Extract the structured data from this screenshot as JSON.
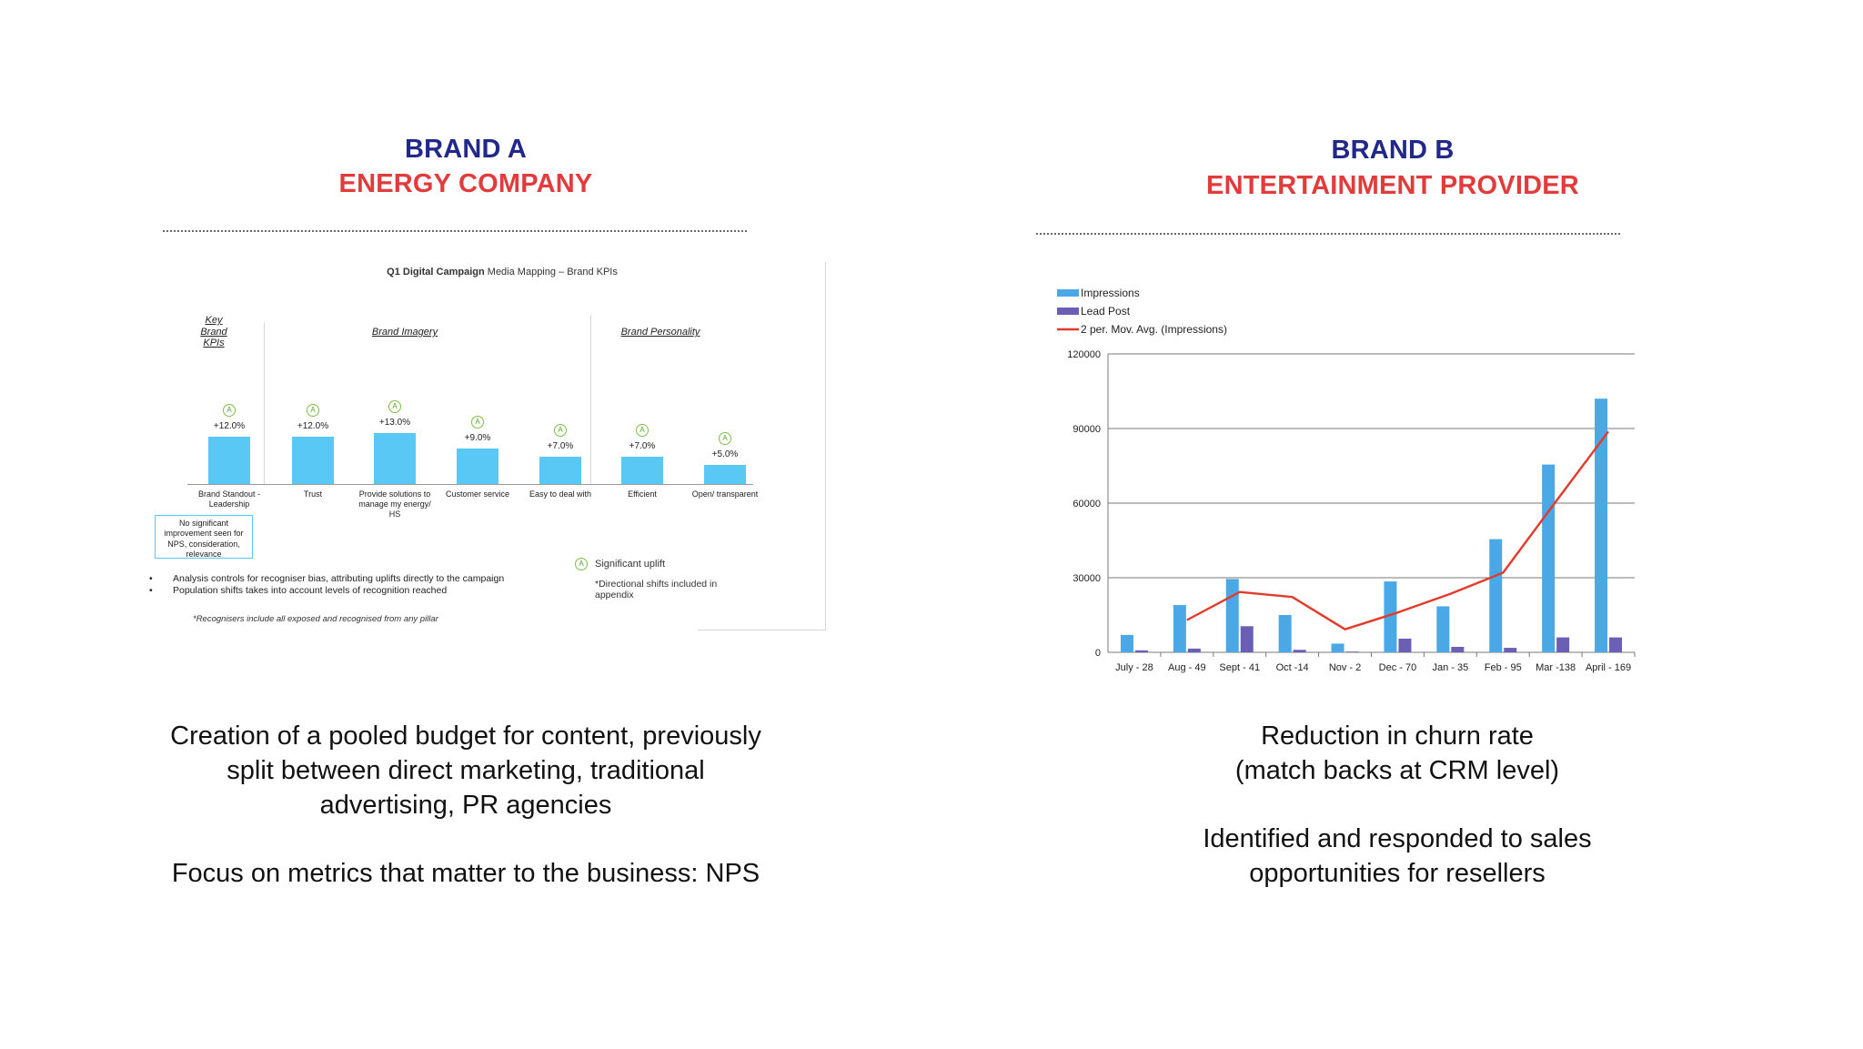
{
  "brand_a": {
    "name": "BRAND A",
    "subtitle": "ENERGY COMPANY",
    "inset": {
      "title_bold": "Q1 Digital Campaign",
      "title_rest": " Media Mapping – Brand KPIs",
      "pillars": {
        "key": "Key Brand KPIs",
        "imagery": "Brand Imagery",
        "personality": "Brand Personality"
      },
      "note_box": "No significant improvement seen for NPS, consideration, relevance",
      "legend_icon": "A",
      "legend_significant": "Significant uplift",
      "legend_directional": "*Directional shifts included in appendix",
      "bullets": [
        "Analysis controls for recogniser bias, attributing uplifts directly to the campaign",
        "Population shifts takes into account levels of recognition reached"
      ],
      "footnote": "*Recognisers include all exposed and recognised from any pillar"
    },
    "body": [
      "Creation of a pooled budget for content, previously",
      "split between direct marketing, traditional",
      "advertising, PR agencies",
      "Focus on metrics that matter to the business: NPS"
    ]
  },
  "brand_b": {
    "name": "BRAND B",
    "subtitle": "ENTERTAINMENT PROVIDER",
    "body": [
      "Reduction in churn rate",
      "(match backs at CRM level)",
      "Identified and responded to sales",
      "opportunities for resellers"
    ]
  },
  "chart_data": [
    {
      "type": "bar",
      "title": "Q1 Digital Campaign Media Mapping – Brand KPIs",
      "categories": [
        "Brand Standout - Leadership",
        "Trust",
        "Provide solutions to manage my energy/ HS",
        "Customer service",
        "Easy to deal with",
        "Efficient",
        "Open/ transparent"
      ],
      "values": [
        12.0,
        12.0,
        13.0,
        9.0,
        7.0,
        7.0,
        5.0
      ],
      "labels": [
        "+12.0%",
        "+12.0%",
        "+13.0%",
        "+9.0%",
        "+7.0%",
        "+7.0%",
        "+5.0%"
      ],
      "significant": [
        true,
        true,
        true,
        true,
        true,
        true,
        true
      ],
      "unit": "%",
      "color": "#59c8f4"
    },
    {
      "type": "bar",
      "categories": [
        "July - 28",
        "Aug - 49",
        "Sept - 41",
        "Oct -14",
        "Nov - 2",
        "Dec - 70",
        "Jan - 35",
        "Feb - 95",
        "Mar -138",
        "April - 169"
      ],
      "series": [
        {
          "name": "Impressions",
          "type": "bar",
          "color": "#4aa8e6",
          "values": [
            7000,
            19000,
            29500,
            15000,
            3500,
            28500,
            18500,
            45500,
            75500,
            102000
          ]
        },
        {
          "name": "Lead Post",
          "type": "bar",
          "color": "#6b5fb5",
          "values": [
            800,
            1500,
            10500,
            1000,
            300,
            5500,
            2200,
            1800,
            6000,
            6000
          ]
        },
        {
          "name": "2 per. Mov. Avg.  (Impressions)",
          "type": "line",
          "color": "#e23b2a",
          "values": [
            null,
            13000,
            24250,
            22250,
            9250,
            16000,
            23500,
            32000,
            60500,
            88750
          ]
        }
      ],
      "ylim": [
        0,
        120000
      ],
      "yticks": [
        0,
        30000,
        60000,
        90000,
        120000
      ],
      "grid": true,
      "legend": "top-left"
    }
  ]
}
